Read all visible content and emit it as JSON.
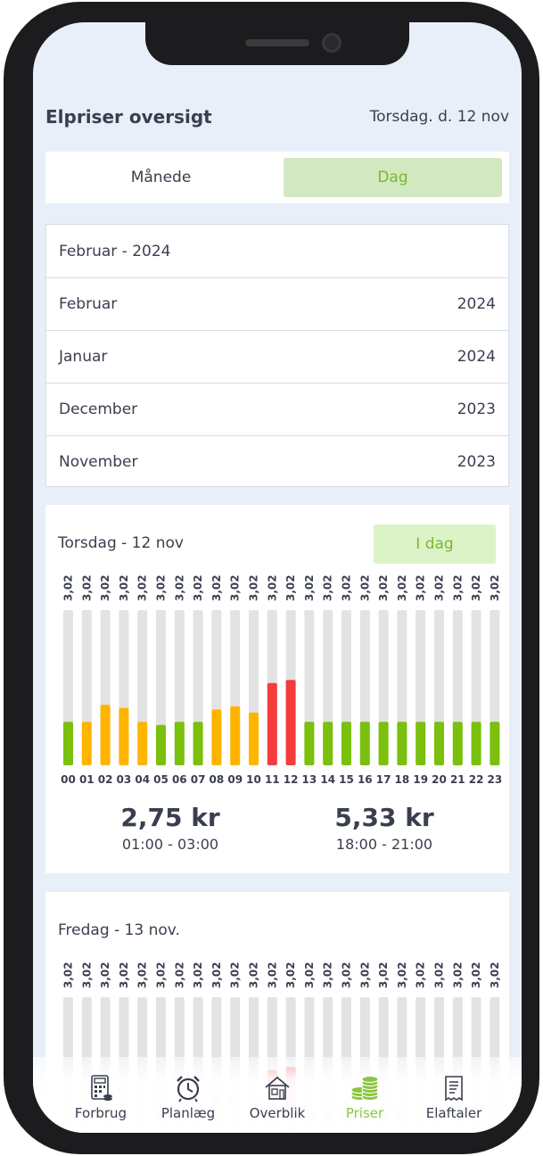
{
  "header": {
    "title": "Elpriser oversigt",
    "date": "Torsdag. d. 12 nov"
  },
  "tabs": {
    "left": "Månede",
    "right": "Dag"
  },
  "months": {
    "title": "Februar - 2024",
    "rows": [
      {
        "month": "Februar",
        "year": "2024"
      },
      {
        "month": "Januar",
        "year": "2024"
      },
      {
        "month": "December",
        "year": "2023"
      },
      {
        "month": "November",
        "year": "2023"
      }
    ]
  },
  "today": {
    "title": "Torsdag - 12 nov",
    "today_button": "I dag",
    "low": {
      "price": "2,75 kr",
      "time": "01:00 - 03:00"
    },
    "high": {
      "price": "5,33 kr",
      "time": "18:00 - 21:00"
    }
  },
  "tomorrow": {
    "title": "Fredag - 13 nov."
  },
  "nav": {
    "items": [
      {
        "label": "Forbrug",
        "icon": "calculator-icon"
      },
      {
        "label": "Planlæg",
        "icon": "alarm-clock-icon"
      },
      {
        "label": "Overblik",
        "icon": "house-icon"
      },
      {
        "label": "Priser",
        "icon": "coins-icon"
      },
      {
        "label": "Elaftaler",
        "icon": "receipt-icon"
      }
    ],
    "active": "Priser"
  },
  "colors": {
    "green": "#7ac00c",
    "yellow": "#ffb400",
    "red": "#f53c3c",
    "track": "#e3e3e3",
    "accent": "#8cc63f"
  },
  "chart_data": [
    {
      "type": "bar",
      "title": "Torsdag - 12 nov",
      "categories": [
        "00",
        "01",
        "02",
        "03",
        "04",
        "05",
        "06",
        "07",
        "08",
        "09",
        "10",
        "11",
        "12",
        "13",
        "14",
        "15",
        "16",
        "17",
        "18",
        "19",
        "20",
        "21",
        "22",
        "23"
      ],
      "labels": [
        "3,02",
        "3,02",
        "3,02",
        "3,02",
        "3,02",
        "3,02",
        "3,02",
        "3,02",
        "3,02",
        "3,02",
        "3,02",
        "3,02",
        "3,02",
        "3,02",
        "3,02",
        "3,02",
        "3,02",
        "3,02",
        "3,02",
        "3,02",
        "3,02",
        "3,02",
        "3,02",
        "3,02"
      ],
      "values": [
        0.28,
        0.28,
        0.39,
        0.37,
        0.28,
        0.26,
        0.28,
        0.28,
        0.36,
        0.38,
        0.34,
        0.53,
        0.55,
        0.28,
        0.28,
        0.28,
        0.28,
        0.28,
        0.28,
        0.28,
        0.28,
        0.28,
        0.28,
        0.28
      ],
      "levels": [
        "green",
        "yellow",
        "yellow",
        "yellow",
        "yellow",
        "green",
        "green",
        "green",
        "yellow",
        "yellow",
        "yellow",
        "red",
        "red",
        "green",
        "green",
        "green",
        "green",
        "green",
        "green",
        "green",
        "green",
        "green",
        "green",
        "green"
      ],
      "ylim": [
        0,
        1
      ]
    },
    {
      "type": "bar",
      "title": "Fredag - 13 nov.",
      "labels": [
        "3,02",
        "3,02",
        "3,02",
        "3,02",
        "3,02",
        "3,02",
        "3,02",
        "3,02",
        "3,02",
        "3,02",
        "3,02",
        "3,02",
        "3,02",
        "3,02",
        "3,02",
        "3,02",
        "3,02",
        "3,02",
        "3,02",
        "3,02",
        "3,02",
        "3,02",
        "3,02",
        "3,02"
      ],
      "values": [
        0.28,
        0.28,
        0.39,
        0.37,
        0.28,
        0.26,
        0.28,
        0.28,
        0.36,
        0.38,
        0.34,
        0.53,
        0.55,
        0.28,
        0.28,
        0.28,
        0.28,
        0.28,
        0.28,
        0.28,
        0.28,
        0.28,
        0.28,
        0.28
      ],
      "levels": [
        "green",
        "yellow",
        "yellow",
        "yellow",
        "yellow",
        "green",
        "green",
        "green",
        "yellow",
        "yellow",
        "yellow",
        "red",
        "red",
        "green",
        "green",
        "green",
        "green",
        "green",
        "green",
        "green",
        "green",
        "green",
        "green",
        "green"
      ],
      "ylim": [
        0,
        1
      ]
    }
  ]
}
